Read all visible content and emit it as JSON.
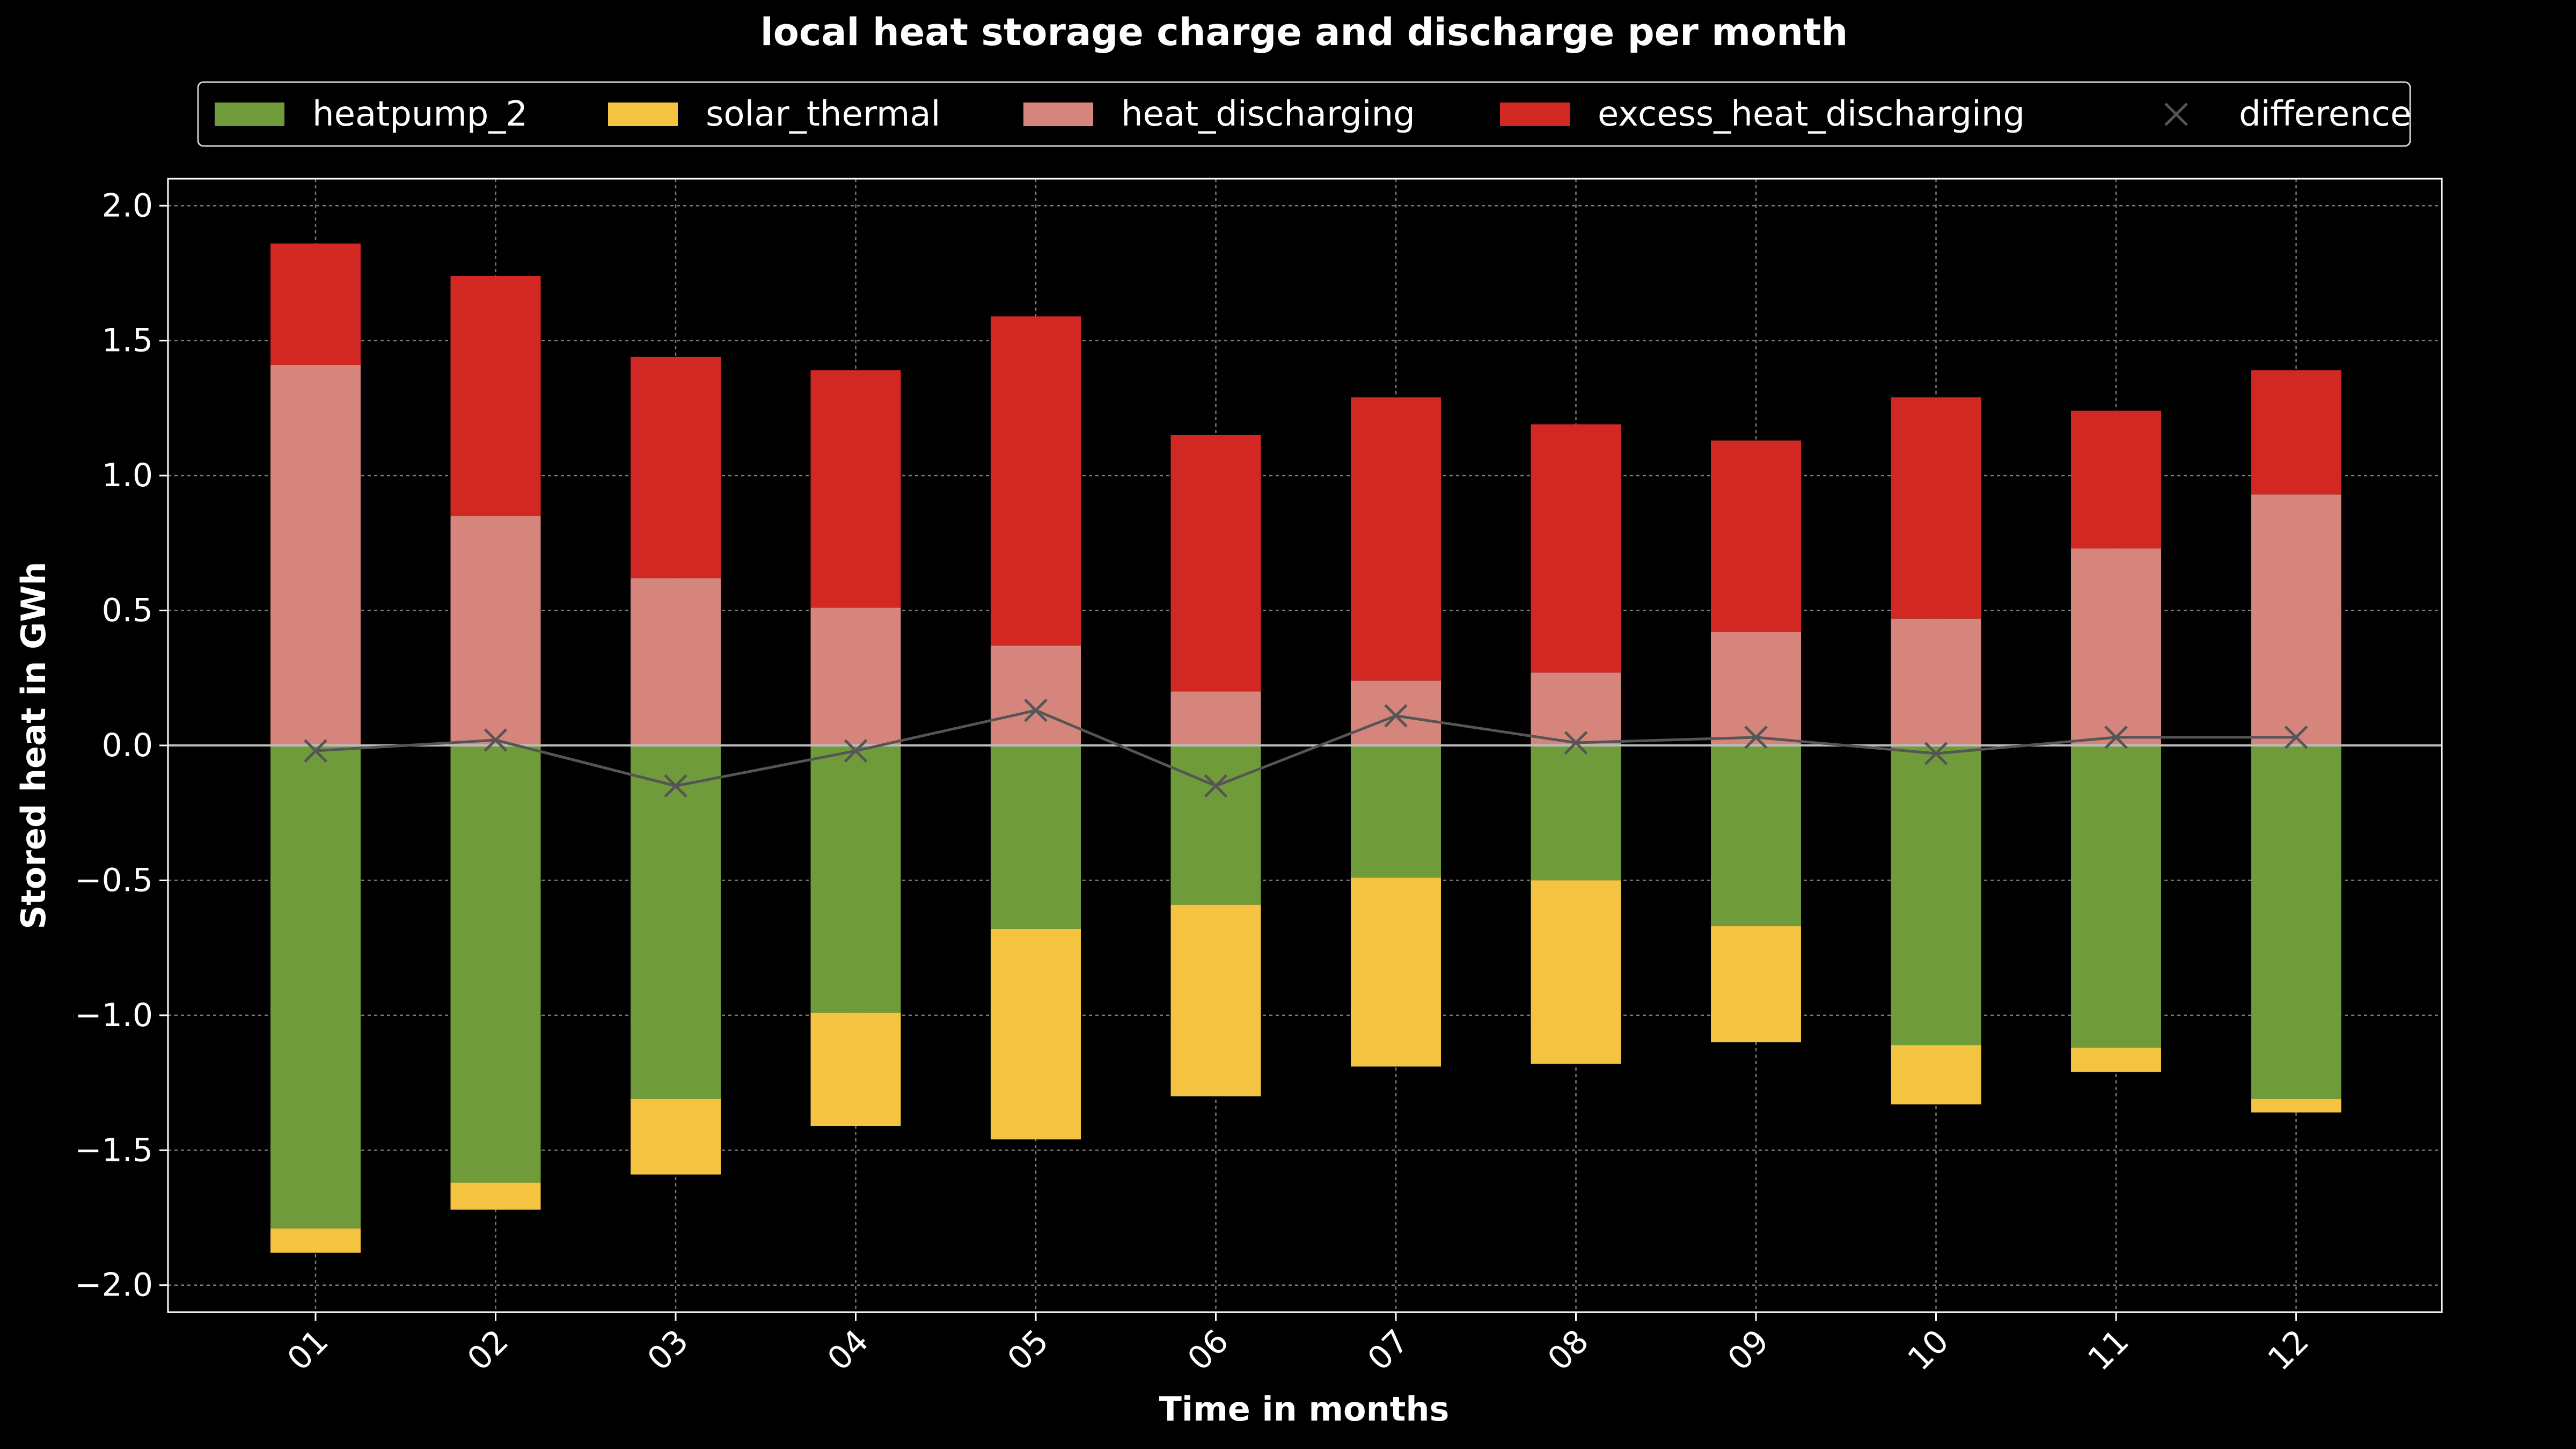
{
  "colors": {
    "background": "#000000",
    "text": "#ffffff",
    "grid": "#7a7a7a",
    "zero_line": "#bdbdbd",
    "heatpump_2": "#709b3a",
    "solar_thermal": "#f4c342",
    "heat_discharging": "#d5857c",
    "excess_heat_discharging": "#d12824",
    "difference": "#555555"
  },
  "chart_data": {
    "type": "bar",
    "stacked": true,
    "title": "local heat storage charge and discharge per month",
    "xlabel": "Time in months",
    "ylabel": "Stored heat in GWh",
    "ylim": [
      -2.1,
      2.1
    ],
    "yticks": [
      -2.0,
      -1.5,
      -1.0,
      -0.5,
      0.0,
      0.5,
      1.0,
      1.5,
      2.0
    ],
    "ytick_labels": [
      "−2.0",
      "−1.5",
      "−1.0",
      "−0.5",
      "0.0",
      "0.5",
      "1.0",
      "1.5",
      "2.0"
    ],
    "grid": true,
    "legend_position": "top",
    "categories": [
      "01",
      "02",
      "03",
      "04",
      "05",
      "06",
      "07",
      "08",
      "09",
      "10",
      "11",
      "12"
    ],
    "series": [
      {
        "name": "heatpump_2",
        "kind": "bar",
        "color_key": "heatpump_2",
        "values": [
          -1.79,
          -1.62,
          -1.31,
          -0.99,
          -0.68,
          -0.59,
          -0.49,
          -0.5,
          -0.67,
          -1.11,
          -1.12,
          -1.31
        ]
      },
      {
        "name": "solar_thermal",
        "kind": "bar",
        "color_key": "solar_thermal",
        "values": [
          -0.09,
          -0.1,
          -0.28,
          -0.42,
          -0.78,
          -0.71,
          -0.7,
          -0.68,
          -0.43,
          -0.22,
          -0.09,
          -0.05
        ]
      },
      {
        "name": "heat_discharging",
        "kind": "bar",
        "color_key": "heat_discharging",
        "values": [
          1.41,
          0.85,
          0.62,
          0.51,
          0.37,
          0.2,
          0.24,
          0.27,
          0.42,
          0.47,
          0.73,
          0.93
        ]
      },
      {
        "name": "excess_heat_discharging",
        "kind": "bar",
        "color_key": "excess_heat_discharging",
        "values": [
          0.45,
          0.89,
          0.82,
          0.88,
          1.22,
          0.95,
          1.05,
          0.92,
          0.71,
          0.82,
          0.51,
          0.46
        ]
      },
      {
        "name": "difference",
        "kind": "line-marker",
        "color_key": "difference",
        "values": [
          -0.02,
          0.02,
          -0.15,
          -0.02,
          0.13,
          -0.15,
          0.11,
          0.01,
          0.03,
          -0.03,
          0.03,
          0.03
        ]
      }
    ]
  }
}
